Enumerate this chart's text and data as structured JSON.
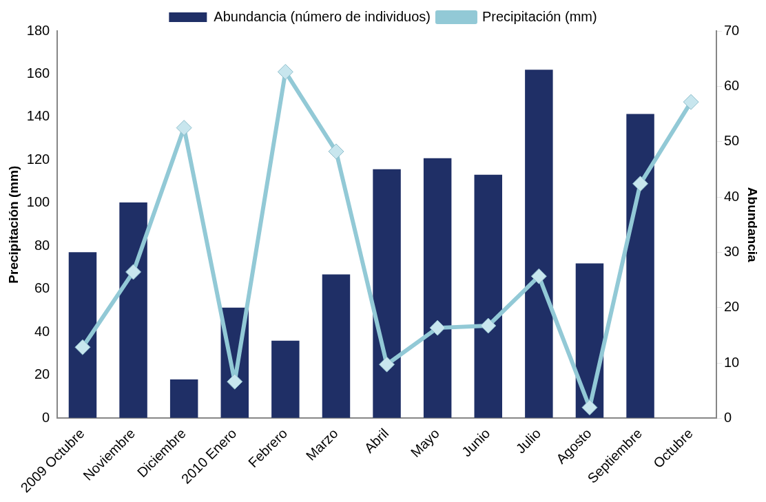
{
  "chart_data": {
    "type": "bar",
    "ylabel": "Precipitación (mm)",
    "y2label": "Abundancia",
    "categories": [
      "2009 Octubre",
      "Noviembre",
      "Diciembre",
      "2010 Enero",
      "Febrero",
      "Marzo",
      "Abril",
      "Mayo",
      "Junio",
      "Julio",
      "Agosto",
      "Septiembre",
      "Octubre"
    ],
    "series": [
      {
        "name": "Abundancia (número de individuos)",
        "axis": "y2",
        "color": "#1f2f66",
        "values": [
          30,
          39,
          7,
          20,
          14,
          26,
          45,
          47,
          44,
          63,
          28,
          55,
          null
        ]
      },
      {
        "name": "Precipitación (mm)",
        "type": "line",
        "axis": "y",
        "color": "#92c9d6",
        "marker": "diamond",
        "values": [
          33,
          68,
          135,
          17,
          161,
          124,
          25,
          42,
          43,
          66,
          5,
          109,
          147
        ]
      }
    ],
    "ylim": [
      0,
      180
    ],
    "yticks": [
      0,
      20,
      40,
      60,
      80,
      100,
      120,
      140,
      160,
      180
    ],
    "y2lim": [
      0,
      70
    ],
    "y2ticks": [
      0,
      10,
      20,
      30,
      40,
      50,
      60,
      70
    ],
    "grid": false,
    "legend": "top"
  }
}
